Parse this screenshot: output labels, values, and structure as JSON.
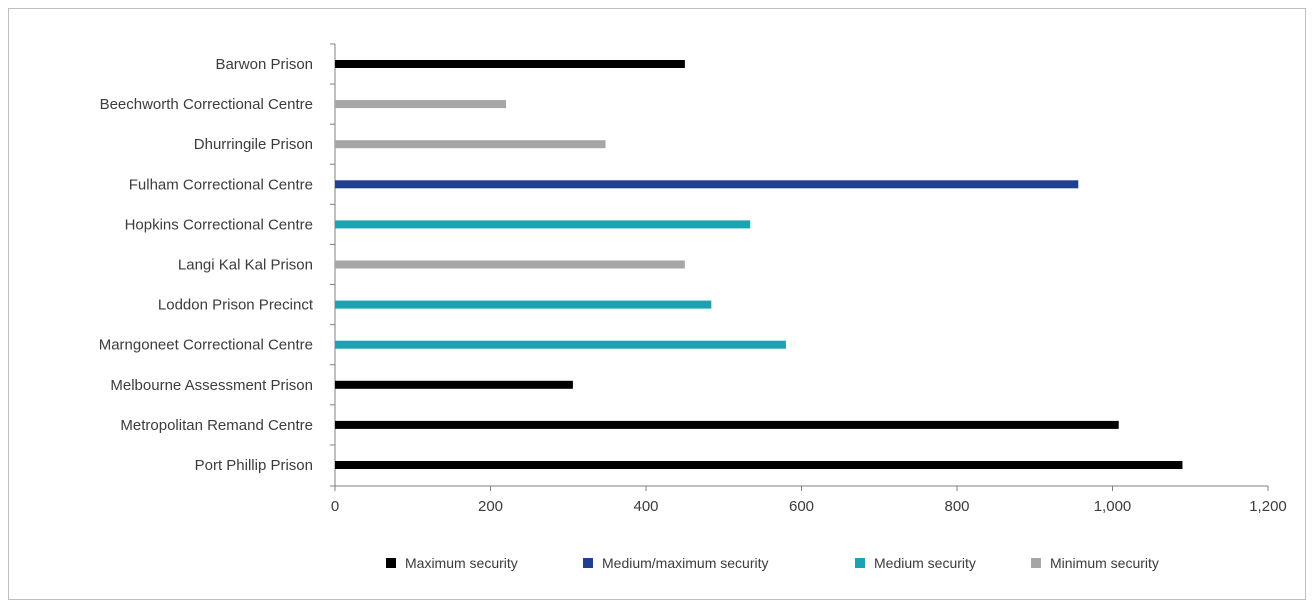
{
  "chart_data": {
    "type": "bar",
    "orientation": "horizontal",
    "categories": [
      "Barwon Prison",
      "Beechworth Correctional Centre",
      "Dhurringile Prison",
      "Fulham Correctional Centre",
      "Hopkins Correctional Centre",
      "Langi Kal Kal Prison",
      "Loddon Prison Precinct",
      "Marngoneet Correctional Centre",
      "Melbourne Assessment Prison",
      "Metropolitan Remand Centre",
      "Port Phillip Prison"
    ],
    "values": [
      450,
      220,
      348,
      956,
      534,
      450,
      484,
      580,
      306,
      1008,
      1090
    ],
    "bar_groups": [
      "Maximum security",
      "Minimum security",
      "Minimum security",
      "Medium/maximum security",
      "Medium security",
      "Minimum security",
      "Medium security",
      "Medium security",
      "Maximum security",
      "Maximum security",
      "Maximum security"
    ],
    "legend": [
      {
        "name": "Maximum security",
        "color": "#000000"
      },
      {
        "name": "Medium/maximum security",
        "color": "#1f3f8f"
      },
      {
        "name": "Medium security",
        "color": "#1aa3b0"
      },
      {
        "name": "Minimum security",
        "color": "#a6a6a6"
      }
    ],
    "xlim": [
      0,
      1200
    ],
    "x_ticks": [
      "0",
      "200",
      "400",
      "600",
      "800",
      "1,000",
      "1,200"
    ],
    "x_tick_values": [
      0,
      200,
      400,
      600,
      800,
      1000,
      1200
    ],
    "grid": false,
    "legend_position": "bottom"
  }
}
